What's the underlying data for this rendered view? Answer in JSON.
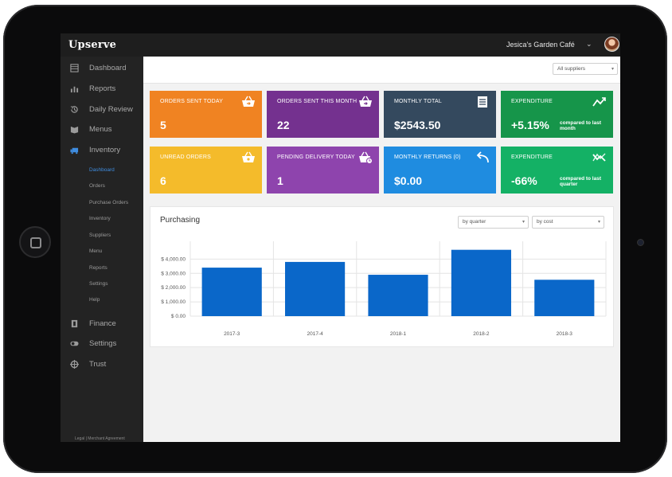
{
  "app": {
    "name": "Upserve",
    "venue": "Jesica's Garden Café"
  },
  "sidebar": {
    "items": [
      {
        "label": "Dashboard",
        "icon": "calendar-icon"
      },
      {
        "label": "Reports",
        "icon": "bar-chart-icon"
      },
      {
        "label": "Daily Review",
        "icon": "history-icon"
      },
      {
        "label": "Menus",
        "icon": "book-icon"
      },
      {
        "label": "Inventory",
        "icon": "truck-icon"
      }
    ],
    "subitems": [
      "Dashboard",
      "Orders",
      "Purchase Orders",
      "Inventory",
      "Suppliers",
      "Menu",
      "Reports",
      "Settings",
      "Help"
    ],
    "bottom_items": [
      {
        "label": "Finance",
        "icon": "bank-icon"
      },
      {
        "label": "Settings",
        "icon": "toggle-icon"
      },
      {
        "label": "Trust",
        "icon": "target-icon"
      }
    ],
    "legal": "Legal | Merchant Agreement"
  },
  "filters": {
    "suppliers": "All suppliers"
  },
  "cards": [
    {
      "title": "Orders sent today",
      "value": "5",
      "color": "#f08322",
      "icon": "basket-arrow-icon"
    },
    {
      "title": "Orders sent this month",
      "value": "22",
      "color": "#74318f",
      "icon": "basket-arrow-icon"
    },
    {
      "title": "Monthly total",
      "value": "$2543.50",
      "color": "#34495e",
      "icon": "list-icon"
    },
    {
      "title": "Expenditure",
      "value": "+5.15%",
      "compare": "compared to last month",
      "color": "#16954a",
      "icon": "trend-icon"
    },
    {
      "title": "Unread orders",
      "value": "6",
      "color": "#f4bb2b",
      "icon": "basket-icon"
    },
    {
      "title": "Pending delivery today",
      "value": "1",
      "color": "#8e44ad",
      "icon": "basket-clock-icon"
    },
    {
      "title": "Monthly returns (0)",
      "value": "$0.00",
      "color": "#1f8ce0",
      "icon": "return-arrow-icon"
    },
    {
      "title": "Expenditure",
      "value": "-66%",
      "compare": "compared to last quarter",
      "color": "#14b165",
      "icon": "trend-icon"
    }
  ],
  "purchasing": {
    "title": "Purchasing",
    "period_select": "by quarter",
    "metric_select": "by cost"
  },
  "chart_data": {
    "type": "bar",
    "title": "Purchasing",
    "categories": [
      "2017-3",
      "2017-4",
      "2018-1",
      "2018-2",
      "2018-3"
    ],
    "values": [
      3400,
      3800,
      2900,
      4650,
      2550
    ],
    "ylim": [
      0,
      4800
    ],
    "yticks": [
      0,
      1000,
      2000,
      3000,
      4000
    ],
    "ytick_labels": [
      "$ 0.00",
      "$ 1,000.00",
      "$ 2,000.00",
      "$ 3,000.00",
      "$ 4,000.00"
    ],
    "bar_color": "#0a67c9",
    "grid": true
  }
}
